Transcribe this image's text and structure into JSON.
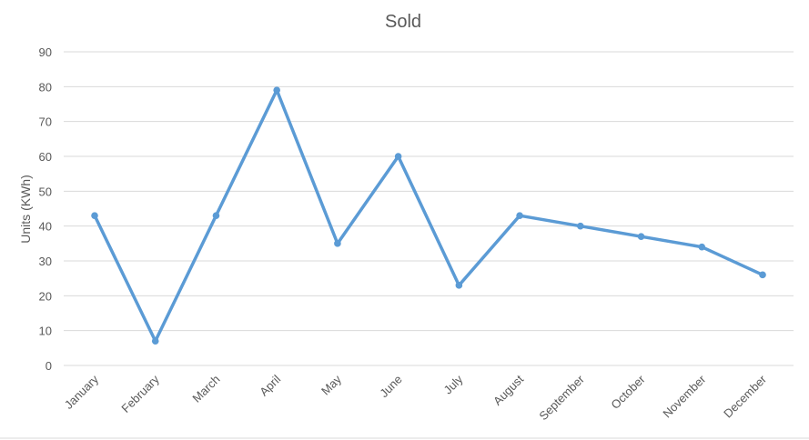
{
  "chart_data": {
    "type": "line",
    "title": "Sold",
    "xlabel": "",
    "ylabel": "Units (KWh)",
    "categories": [
      "January",
      "February",
      "March",
      "April",
      "May",
      "June",
      "July",
      "August",
      "September",
      "October",
      "November",
      "December"
    ],
    "series": [
      {
        "values": [
          43,
          7,
          43,
          79,
          35,
          60,
          23,
          43,
          40,
          37,
          34,
          26
        ]
      }
    ],
    "ylim": [
      0,
      90
    ],
    "yticks": [
      0,
      10,
      20,
      30,
      40,
      50,
      60,
      70,
      80,
      90
    ],
    "grid": true,
    "legend": "none",
    "series_color": "#5b9bd5"
  }
}
